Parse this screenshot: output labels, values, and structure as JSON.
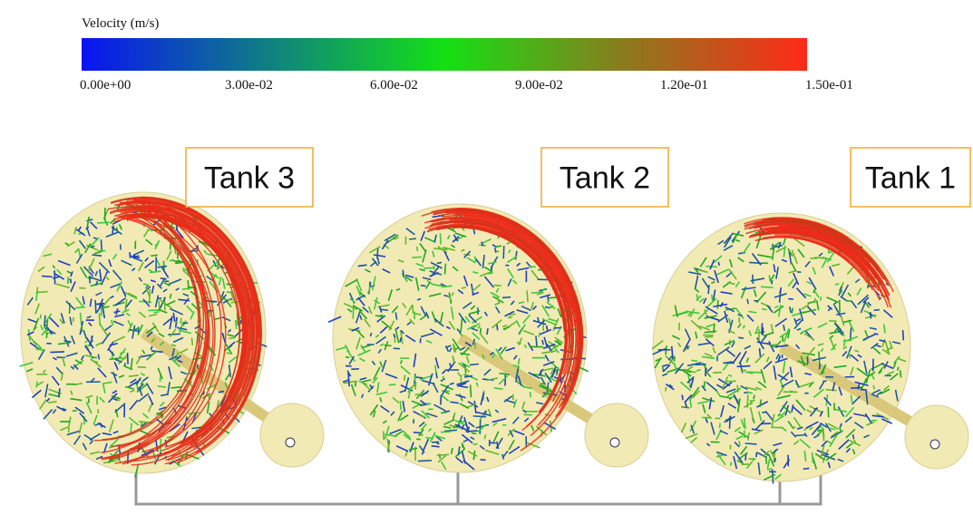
{
  "colorbar": {
    "title": "Velocity (m/s)",
    "tick_labels": [
      "0.00e+00",
      "3.00e-02",
      "6.00e-02",
      "9.00e-02",
      "1.20e-01",
      "1.50e-01"
    ]
  },
  "tanks": [
    {
      "label": "Tank 3"
    },
    {
      "label": "Tank 2"
    },
    {
      "label": "Tank 1"
    }
  ]
}
